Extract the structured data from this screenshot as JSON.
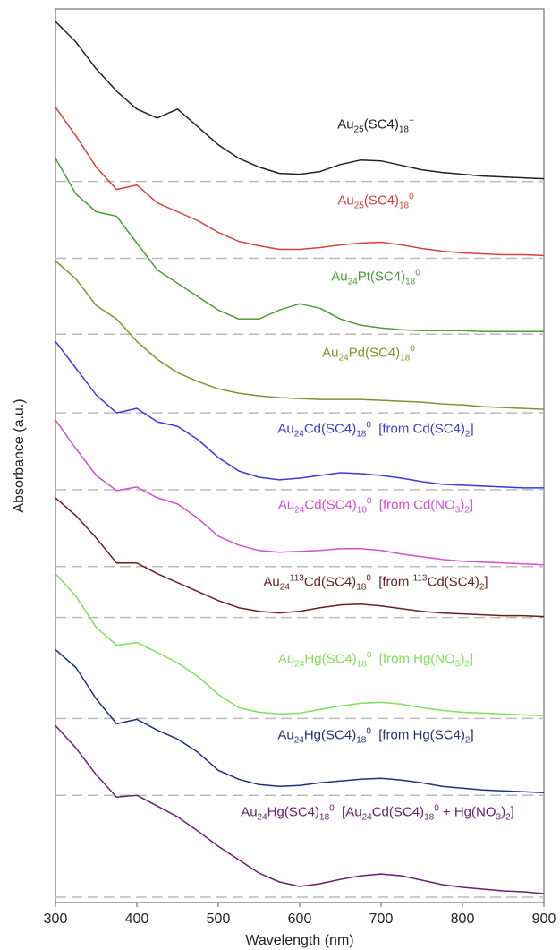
{
  "chart_data": {
    "type": "line",
    "xlabel": "Wavelength (nm)",
    "ylabel": "Absorbance (a.u.)",
    "xlim": [
      300,
      900
    ],
    "xticks": [
      300,
      400,
      500,
      600,
      700,
      800,
      900
    ],
    "ylim": [
      0,
      10
    ],
    "x": [
      300,
      325,
      350,
      375,
      400,
      425,
      450,
      475,
      500,
      525,
      550,
      575,
      600,
      625,
      650,
      675,
      700,
      725,
      750,
      775,
      800,
      825,
      850,
      875,
      900
    ],
    "series": [
      {
        "name": "Au<sub>25</sub>(SC4)<sub>18</sub><sup>−</sup>",
        "color": "#222222",
        "baseline": 8.07,
        "values": [
          9.86,
          9.63,
          9.33,
          9.08,
          8.88,
          8.78,
          8.88,
          8.68,
          8.48,
          8.33,
          8.23,
          8.16,
          8.15,
          8.18,
          8.26,
          8.31,
          8.3,
          8.25,
          8.2,
          8.17,
          8.15,
          8.13,
          8.12,
          8.11,
          8.1
        ]
      },
      {
        "name": "Au<sub>25</sub>(SC4)<sub>18</sub><sup>0</sup>",
        "color": "#d9403a",
        "baseline": 7.21,
        "values": [
          8.9,
          8.58,
          8.23,
          7.98,
          8.03,
          7.83,
          7.73,
          7.63,
          7.5,
          7.4,
          7.35,
          7.31,
          7.31,
          7.33,
          7.36,
          7.38,
          7.39,
          7.36,
          7.32,
          7.29,
          7.27,
          7.26,
          7.25,
          7.25,
          7.24
        ]
      },
      {
        "name": "Au<sub>24</sub>Pt(SC4)<sub>18</sub><sup>0</sup>",
        "color": "#4f9a3a",
        "baseline": 6.36,
        "values": [
          8.33,
          7.93,
          7.73,
          7.68,
          7.38,
          7.08,
          6.93,
          6.78,
          6.63,
          6.53,
          6.53,
          6.63,
          6.7,
          6.65,
          6.53,
          6.46,
          6.43,
          6.41,
          6.4,
          6.4,
          6.4,
          6.39,
          6.39,
          6.39,
          6.39
        ]
      },
      {
        "name": "Au<sub>24</sub>Pd(SC4)<sub>18</sub><sup>0</sup>",
        "color": "#8c8c2e",
        "baseline": 5.48,
        "values": [
          7.18,
          6.98,
          6.68,
          6.53,
          6.28,
          6.08,
          5.93,
          5.83,
          5.75,
          5.7,
          5.67,
          5.65,
          5.64,
          5.63,
          5.63,
          5.63,
          5.62,
          5.61,
          5.6,
          5.58,
          5.57,
          5.55,
          5.54,
          5.53,
          5.52
        ]
      },
      {
        "name": "Au<sub>24</sub>Cd(SC4)<sub>18</sub><sup>0</sup>&nbsp; [from Cd(SC4)<sub>2</sub>]",
        "color": "#3a3ad9",
        "baseline": 4.62,
        "values": [
          6.28,
          5.98,
          5.68,
          5.48,
          5.53,
          5.38,
          5.33,
          5.18,
          4.98,
          4.83,
          4.76,
          4.73,
          4.75,
          4.78,
          4.81,
          4.8,
          4.78,
          4.75,
          4.71,
          4.68,
          4.67,
          4.66,
          4.65,
          4.64,
          4.64
        ]
      },
      {
        "name": "Au<sub>24</sub>Cd(SC4)<sub>18</sub><sup>0</sup>&nbsp; [from Cd(NO<sub>3</sub>)<sub>2</sub>]",
        "color": "#d34fd3",
        "baseline": 3.76,
        "values": [
          5.4,
          5.08,
          4.78,
          4.61,
          4.65,
          4.53,
          4.46,
          4.3,
          4.1,
          4.0,
          3.94,
          3.92,
          3.93,
          3.94,
          3.96,
          3.96,
          3.94,
          3.9,
          3.87,
          3.84,
          3.82,
          3.81,
          3.8,
          3.79,
          3.78
        ]
      },
      {
        "name": "Au<sub>24</sub><sup>113</sup>Cd(SC4)<sub>18</sub><sup>0</sup>&nbsp; [from <sup>113</sup>Cd(SC4)<sub>2</sub>]",
        "color": "#6b2020",
        "baseline": 3.19,
        "values": [
          4.53,
          4.33,
          4.08,
          3.8,
          3.8,
          3.68,
          3.58,
          3.48,
          3.38,
          3.3,
          3.26,
          3.24,
          3.26,
          3.3,
          3.33,
          3.34,
          3.32,
          3.29,
          3.26,
          3.24,
          3.23,
          3.22,
          3.21,
          3.21,
          3.2
        ]
      },
      {
        "name": "Au<sub>24</sub>Hg(SC4)<sub>18</sub><sup>0</sup>&nbsp; [from Hg(NO<sub>3</sub>)<sub>2</sub>]",
        "color": "#7fe05a",
        "baseline": 2.06,
        "values": [
          3.68,
          3.43,
          3.08,
          2.88,
          2.91,
          2.8,
          2.68,
          2.53,
          2.33,
          2.18,
          2.13,
          2.11,
          2.12,
          2.16,
          2.2,
          2.23,
          2.24,
          2.22,
          2.18,
          2.15,
          2.13,
          2.12,
          2.11,
          2.1,
          2.09
        ]
      },
      {
        "name": "Au<sub>24</sub>Hg(SC4)<sub>18</sub><sup>0</sup>&nbsp; [from Hg(SC4)<sub>2</sub>]",
        "color": "#20307a",
        "baseline": 1.2,
        "values": [
          2.83,
          2.63,
          2.28,
          2.0,
          2.05,
          1.93,
          1.83,
          1.68,
          1.48,
          1.38,
          1.32,
          1.3,
          1.31,
          1.34,
          1.36,
          1.38,
          1.39,
          1.37,
          1.34,
          1.3,
          1.28,
          1.26,
          1.25,
          1.24,
          1.23
        ]
      },
      {
        "name": "Au<sub>24</sub>Hg(SC4)<sub>18</sub><sup>0</sup>&nbsp; [Au<sub>24</sub>Cd(SC4)<sub>18</sub><sup>0</sup> + Hg(NO<sub>3</sub>)<sub>2</sub>]",
        "color": "#6a2070",
        "baseline": 0.06,
        "values": [
          1.98,
          1.73,
          1.43,
          1.18,
          1.2,
          1.08,
          0.96,
          0.8,
          0.63,
          0.48,
          0.33,
          0.23,
          0.18,
          0.21,
          0.26,
          0.3,
          0.32,
          0.3,
          0.25,
          0.2,
          0.17,
          0.15,
          0.13,
          0.12,
          0.1
        ]
      }
    ]
  }
}
